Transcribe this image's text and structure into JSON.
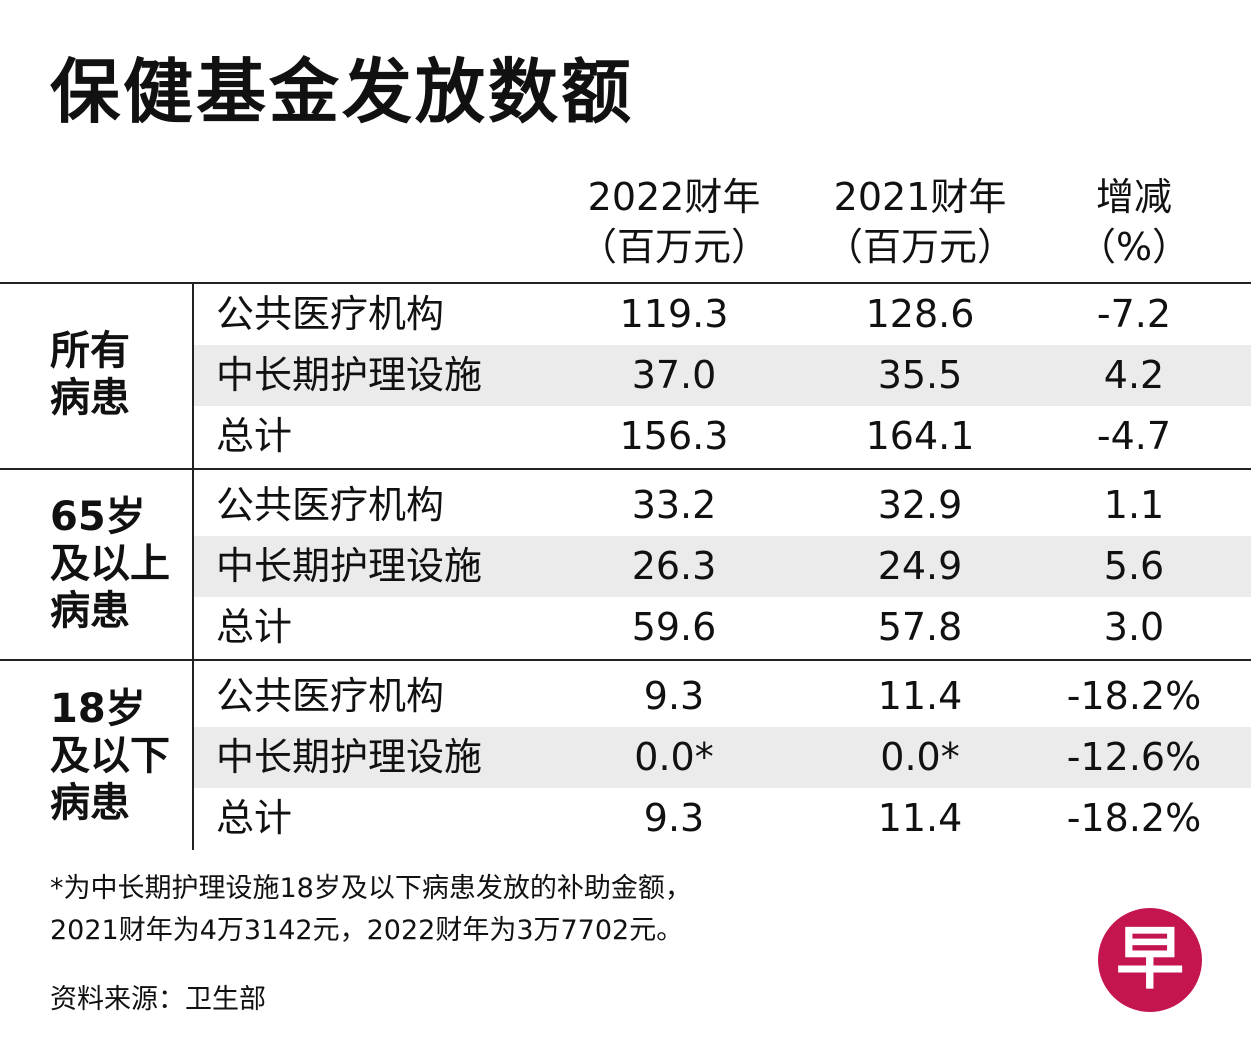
{
  "title": "保健基金发放数额",
  "chart_data": {
    "type": "table",
    "columns": [
      {
        "line1": "2022财年",
        "line2": "（百万元）"
      },
      {
        "line1": "2021财年",
        "line2": "（百万元）"
      },
      {
        "line1": "增减",
        "line2": "（%）"
      }
    ],
    "groups": [
      {
        "label_lines": [
          "所有",
          "病患"
        ],
        "rows": [
          {
            "label": "公共医疗机构",
            "values": [
              "119.3",
              "128.6",
              "-7.2"
            ]
          },
          {
            "label": "中长期护理设施",
            "values": [
              "37.0",
              "35.5",
              "4.2"
            ]
          },
          {
            "label": "总计",
            "values": [
              "156.3",
              "164.1",
              "-4.7"
            ]
          }
        ]
      },
      {
        "label_lines": [
          "65岁",
          "及以上",
          "病患"
        ],
        "rows": [
          {
            "label": "公共医疗机构",
            "values": [
              "33.2",
              "32.9",
              "1.1"
            ]
          },
          {
            "label": "中长期护理设施",
            "values": [
              "26.3",
              "24.9",
              "5.6"
            ]
          },
          {
            "label": "总计",
            "values": [
              "59.6",
              "57.8",
              "3.0"
            ]
          }
        ]
      },
      {
        "label_lines": [
          "18岁",
          "及以下",
          "病患"
        ],
        "rows": [
          {
            "label": "公共医疗机构",
            "values": [
              "9.3",
              "11.4",
              "-18.2%"
            ]
          },
          {
            "label": "中长期护理设施",
            "values": [
              "0.0*",
              "0.0*",
              "-12.6%"
            ]
          },
          {
            "label": "总计",
            "values": [
              "9.3",
              "11.4",
              "-18.2%"
            ]
          }
        ]
      }
    ]
  },
  "footnote": [
    "*为中长期护理设施18岁及以下病患发放的补助金额，",
    " 2021财年为4万3142元，2022财年为3万7702元。"
  ],
  "source": "资料来源：卫生部",
  "logo_text": "早",
  "colors": {
    "logo": "#c5154f",
    "row_shade": "#ebebeb"
  }
}
